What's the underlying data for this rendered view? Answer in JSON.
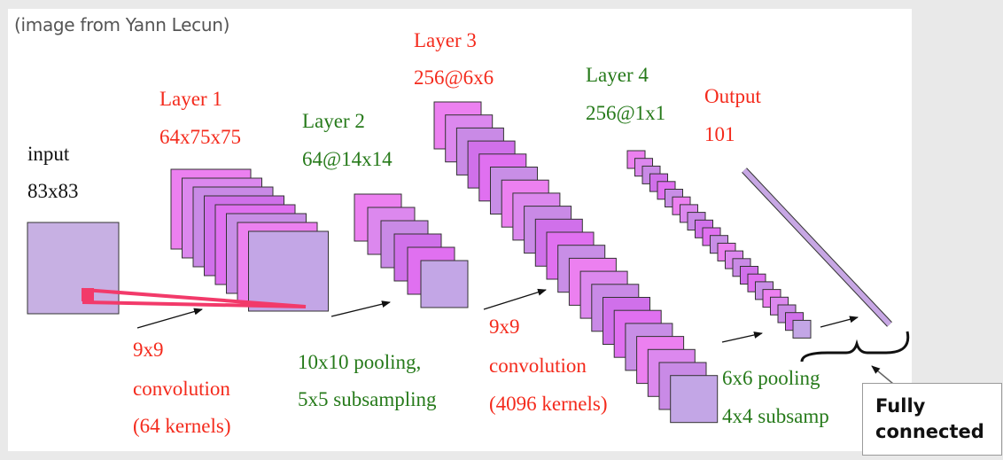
{
  "credit": "(image from Yann Lecun)",
  "input": {
    "title": "input",
    "size": "83x83"
  },
  "layer1": {
    "title": "Layer 1",
    "size": "64x75x75"
  },
  "layer2": {
    "title": "Layer 2",
    "size": "64@14x14"
  },
  "layer3": {
    "title": "Layer 3",
    "size": "256@6x6"
  },
  "layer4": {
    "title": "Layer 4",
    "size": "256@1x1"
  },
  "output": {
    "title": "Output",
    "size": "101"
  },
  "ops": {
    "conv1": [
      "9x9",
      "convolution",
      "(64 kernels)"
    ],
    "pool1": [
      "10x10 pooling,",
      "5x5 subsampling"
    ],
    "conv2": [
      "9x9",
      "convolution",
      "(4096 kernels)"
    ],
    "pool2": [
      "6x6 pooling",
      "4x4 subsamp"
    ]
  },
  "callout": {
    "line1": "Fully",
    "line2": "connected"
  },
  "colors": {
    "red": "#f42a1c",
    "green": "#267a1a",
    "map_fill": "#c98ae6",
    "map_stroke": "#333333",
    "input_fill": "#c7b0e3",
    "kernel": "#f23a6a"
  }
}
